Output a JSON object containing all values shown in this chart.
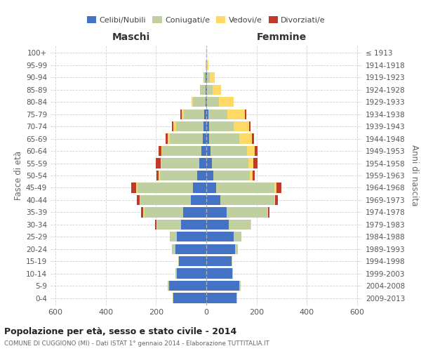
{
  "age_groups": [
    "0-4",
    "5-9",
    "10-14",
    "15-19",
    "20-24",
    "25-29",
    "30-34",
    "35-39",
    "40-44",
    "45-49",
    "50-54",
    "55-59",
    "60-64",
    "65-69",
    "70-74",
    "75-79",
    "80-84",
    "85-89",
    "90-94",
    "95-99",
    "100+"
  ],
  "birth_years": [
    "2009-2013",
    "2004-2008",
    "1999-2003",
    "1994-1998",
    "1989-1993",
    "1984-1988",
    "1979-1983",
    "1974-1978",
    "1969-1973",
    "1964-1968",
    "1959-1963",
    "1954-1958",
    "1949-1953",
    "1944-1948",
    "1939-1943",
    "1934-1938",
    "1929-1933",
    "1924-1928",
    "1919-1923",
    "1914-1918",
    "≤ 1913"
  ],
  "males": {
    "celibi": [
      130,
      148,
      118,
      108,
      122,
      118,
      100,
      92,
      62,
      52,
      35,
      28,
      20,
      14,
      10,
      8,
      4,
      4,
      2,
      1,
      0
    ],
    "coniugati": [
      4,
      5,
      4,
      4,
      14,
      28,
      95,
      155,
      200,
      222,
      150,
      150,
      155,
      130,
      110,
      80,
      50,
      20,
      8,
      2,
      0
    ],
    "vedovi": [
      0,
      0,
      0,
      0,
      0,
      0,
      4,
      4,
      4,
      4,
      4,
      3,
      5,
      10,
      12,
      10,
      5,
      2,
      0,
      0,
      0
    ],
    "divorziati": [
      0,
      0,
      0,
      0,
      0,
      0,
      4,
      10,
      10,
      20,
      10,
      20,
      10,
      8,
      5,
      5,
      0,
      0,
      0,
      0,
      0
    ]
  },
  "females": {
    "nubili": [
      120,
      132,
      102,
      100,
      115,
      110,
      88,
      80,
      55,
      40,
      28,
      22,
      18,
      12,
      10,
      8,
      4,
      4,
      3,
      1,
      0
    ],
    "coniugate": [
      4,
      4,
      4,
      4,
      12,
      30,
      88,
      162,
      215,
      230,
      145,
      145,
      145,
      120,
      100,
      75,
      45,
      20,
      10,
      3,
      0
    ],
    "vedove": [
      0,
      0,
      0,
      0,
      0,
      0,
      2,
      4,
      4,
      10,
      10,
      20,
      30,
      50,
      60,
      70,
      60,
      35,
      20,
      5,
      1
    ],
    "divorziate": [
      0,
      0,
      0,
      0,
      0,
      0,
      2,
      4,
      10,
      20,
      10,
      18,
      12,
      8,
      5,
      5,
      0,
      0,
      0,
      0,
      0
    ]
  },
  "colors": {
    "celibi": "#4472C4",
    "coniugati": "#BFCF9F",
    "vedovi": "#FFD966",
    "divorziati": "#C0392B"
  },
  "title": "Popolazione per età, sesso e stato civile - 2014",
  "subtitle": "COMUNE DI CUGGIONO (MI) - Dati ISTAT 1° gennaio 2014 - Elaborazione TUTTITALIA.IT",
  "xlabel_left": "Maschi",
  "xlabel_right": "Femmine",
  "ylabel_left": "Fasce di età",
  "ylabel_right": "Anni di nascita",
  "xlim": 620,
  "bg_color": "#ffffff",
  "grid_color": "#cccccc"
}
